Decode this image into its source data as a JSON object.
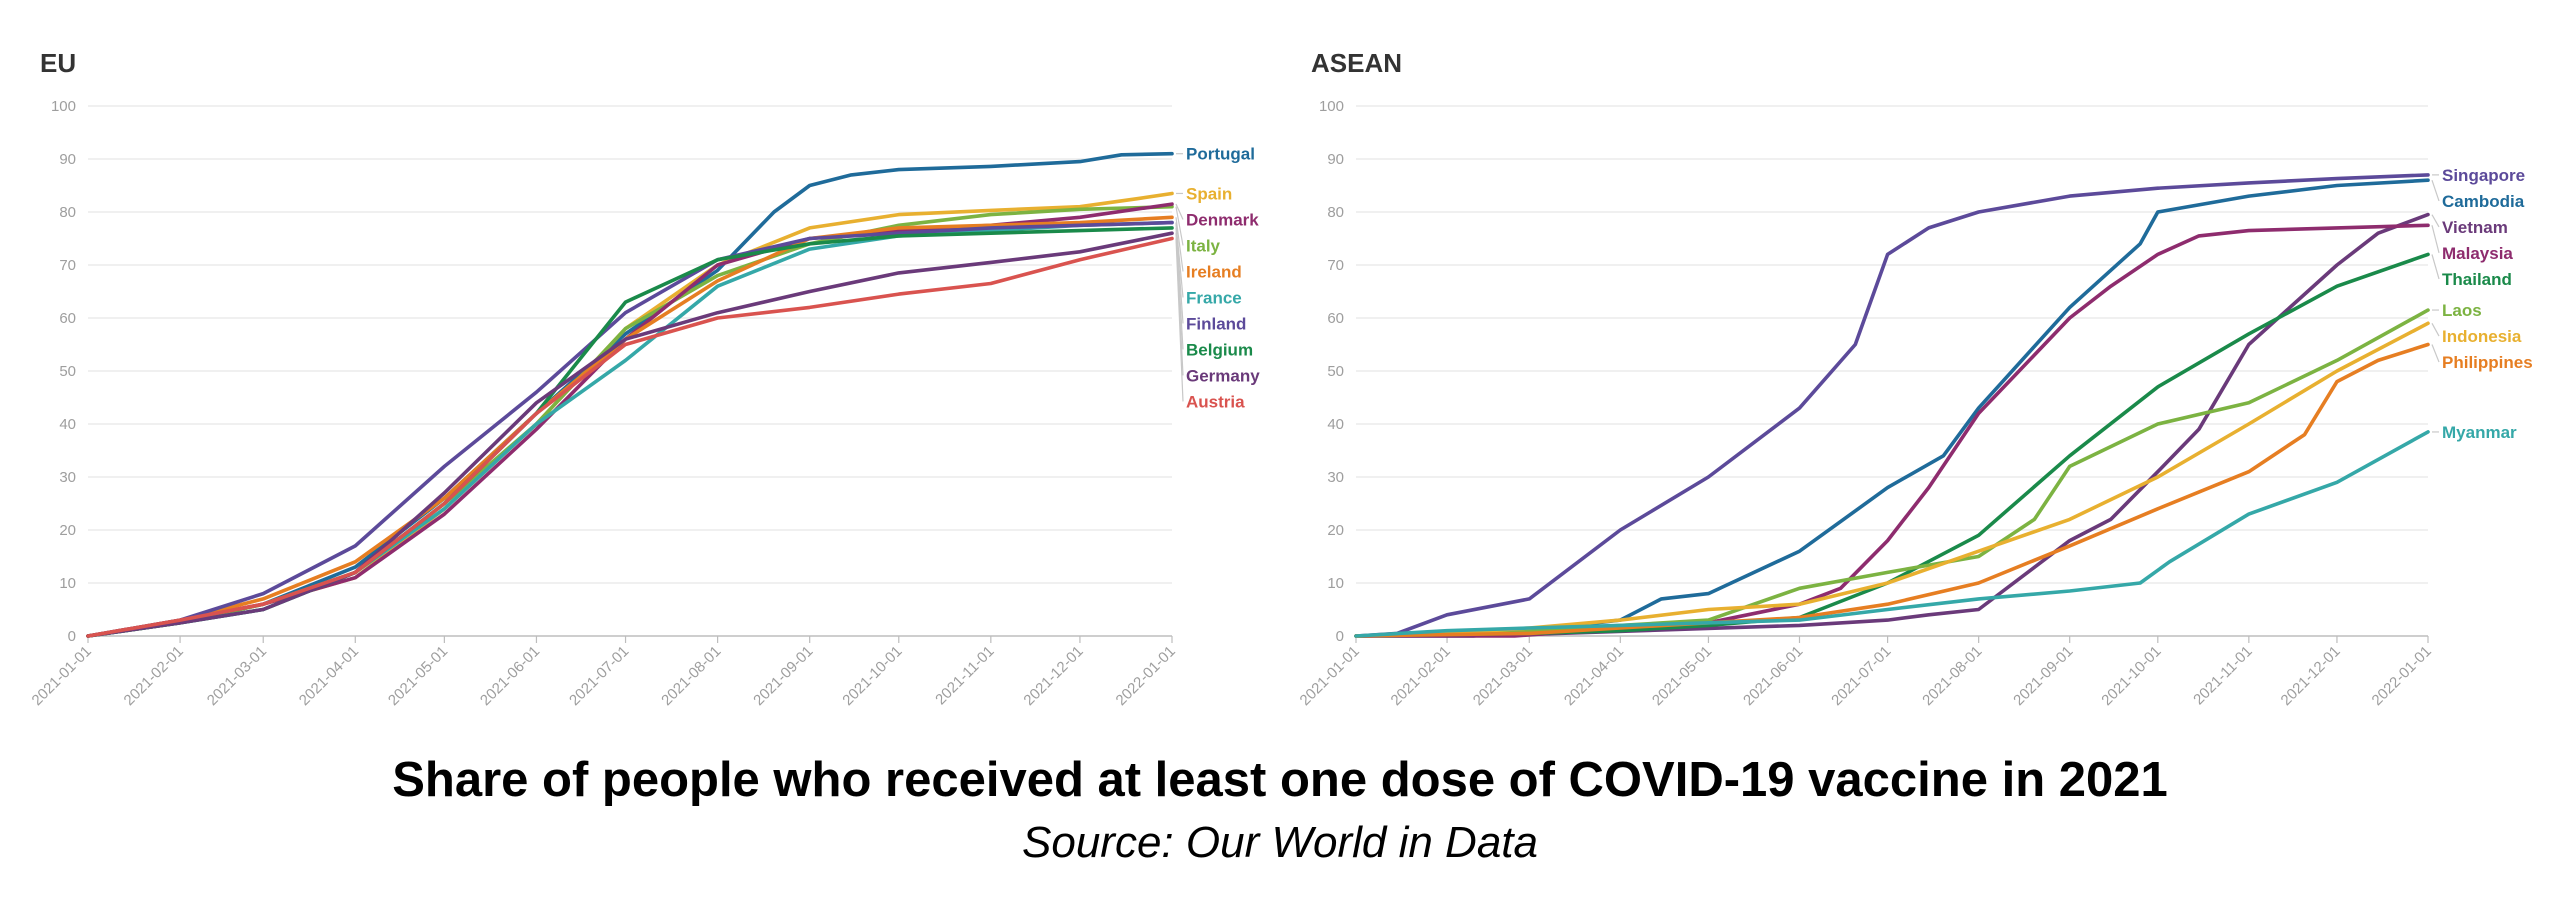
{
  "footer": {
    "title": "Share of people who received at least one dose of COVID-19 vaccine in 2021",
    "source": "Source: Our World in Data"
  },
  "chart_data": [
    {
      "type": "line",
      "title": "EU",
      "xlabel": "",
      "ylabel": "",
      "ylim": [
        0,
        100
      ],
      "yticks": [
        0,
        10,
        20,
        30,
        40,
        50,
        60,
        70,
        80,
        90,
        100
      ],
      "xlim": [
        "2021-01-01",
        "2022-01-01"
      ],
      "xticks": [
        "2021-01-01",
        "2021-02-01",
        "2021-03-01",
        "2021-04-01",
        "2021-05-01",
        "2021-06-01",
        "2021-07-01",
        "2021-08-01",
        "2021-09-01",
        "2021-10-01",
        "2021-11-01",
        "2021-12-01",
        "2022-01-01"
      ],
      "grid": "horizontal",
      "legend": "end-of-line labels",
      "series": [
        {
          "name": "Portugal",
          "color": "#1f6b9a",
          "x": [
            "2021-01-01",
            "2021-02-01",
            "2021-03-01",
            "2021-04-01",
            "2021-05-01",
            "2021-06-01",
            "2021-07-01",
            "2021-08-01",
            "2021-08-20",
            "2021-09-01",
            "2021-09-15",
            "2021-10-01",
            "2021-11-01",
            "2021-12-01",
            "2021-12-15",
            "2022-01-01"
          ],
          "y": [
            0,
            2.5,
            6,
            13,
            26,
            42,
            57,
            69,
            80,
            85,
            87,
            88,
            88.6,
            89.5,
            90.8,
            91
          ]
        },
        {
          "name": "Spain",
          "color": "#e8b030",
          "x": [
            "2021-01-01",
            "2021-02-01",
            "2021-03-01",
            "2021-04-01",
            "2021-05-01",
            "2021-06-01",
            "2021-07-01",
            "2021-08-01",
            "2021-09-01",
            "2021-10-01",
            "2021-11-01",
            "2021-12-01",
            "2021-12-20",
            "2022-01-01"
          ],
          "y": [
            0,
            2.5,
            6,
            11,
            24,
            40,
            58,
            70,
            77,
            79.5,
            80.3,
            81,
            82.5,
            83.5
          ]
        },
        {
          "name": "Italy",
          "color": "#7cb342",
          "x": [
            "2021-01-01",
            "2021-02-01",
            "2021-03-01",
            "2021-04-01",
            "2021-05-01",
            "2021-06-01",
            "2021-07-01",
            "2021-08-01",
            "2021-09-01",
            "2021-10-01",
            "2021-11-01",
            "2021-12-01",
            "2022-01-01"
          ],
          "y": [
            0,
            2.5,
            6,
            12,
            25,
            40,
            58,
            68,
            74,
            77.5,
            79.5,
            80.5,
            81
          ]
        },
        {
          "name": "Denmark",
          "color": "#8e2c6e",
          "x": [
            "2021-01-01",
            "2021-02-01",
            "2021-03-01",
            "2021-04-01",
            "2021-05-01",
            "2021-06-01",
            "2021-07-01",
            "2021-08-01",
            "2021-09-01",
            "2021-10-01",
            "2021-11-01",
            "2021-12-01",
            "2022-01-01"
          ],
          "y": [
            0,
            3,
            6,
            11,
            23,
            39,
            56,
            70,
            75,
            76.5,
            77.5,
            79,
            81.5
          ]
        },
        {
          "name": "France",
          "color": "#35a8a8",
          "x": [
            "2021-01-01",
            "2021-02-01",
            "2021-03-01",
            "2021-04-01",
            "2021-05-01",
            "2021-06-01",
            "2021-07-01",
            "2021-08-01",
            "2021-09-01",
            "2021-10-01",
            "2021-11-01",
            "2021-12-01",
            "2022-01-01"
          ],
          "y": [
            0,
            2.5,
            5,
            12,
            24,
            40,
            52,
            66,
            73,
            75.5,
            76.5,
            77.5,
            78
          ]
        },
        {
          "name": "Ireland",
          "color": "#e67e22",
          "x": [
            "2021-01-01",
            "2021-02-01",
            "2021-03-01",
            "2021-04-01",
            "2021-05-01",
            "2021-06-01",
            "2021-07-01",
            "2021-08-01",
            "2021-09-01",
            "2021-10-01",
            "2021-11-01",
            "2021-12-01",
            "2022-01-01"
          ],
          "y": [
            0,
            3,
            7,
            14,
            26,
            42,
            56,
            67,
            75,
            77,
            77.5,
            78,
            79
          ]
        },
        {
          "name": "Finland",
          "color": "#5c4a9a",
          "x": [
            "2021-01-01",
            "2021-02-01",
            "2021-03-01",
            "2021-04-01",
            "2021-05-01",
            "2021-06-01",
            "2021-07-01",
            "2021-08-01",
            "2021-09-01",
            "2021-10-01",
            "2021-11-01",
            "2021-12-01",
            "2022-01-01"
          ],
          "y": [
            0,
            3,
            8,
            17,
            32,
            46,
            61,
            71,
            75,
            76,
            77,
            77.5,
            78
          ]
        },
        {
          "name": "Belgium",
          "color": "#1a8a4a",
          "x": [
            "2021-01-01",
            "2021-02-01",
            "2021-03-01",
            "2021-04-01",
            "2021-05-01",
            "2021-06-01",
            "2021-07-01",
            "2021-08-01",
            "2021-09-01",
            "2021-10-01",
            "2021-11-01",
            "2021-12-01",
            "2022-01-01"
          ],
          "y": [
            0,
            2.5,
            5,
            12,
            25,
            42,
            63,
            71,
            74,
            75.5,
            76,
            76.5,
            77
          ]
        },
        {
          "name": "Germany",
          "color": "#6a3a7a",
          "x": [
            "2021-01-01",
            "2021-02-01",
            "2021-03-01",
            "2021-04-01",
            "2021-05-01",
            "2021-06-01",
            "2021-07-01",
            "2021-08-01",
            "2021-09-01",
            "2021-10-01",
            "2021-11-01",
            "2021-12-01",
            "2022-01-01"
          ],
          "y": [
            0,
            2.5,
            5,
            12,
            27,
            44,
            56,
            61,
            65,
            68.5,
            70.5,
            72.5,
            76
          ]
        },
        {
          "name": "Austria",
          "color": "#d9534f",
          "x": [
            "2021-01-01",
            "2021-02-01",
            "2021-03-01",
            "2021-04-01",
            "2021-05-01",
            "2021-06-01",
            "2021-07-01",
            "2021-08-01",
            "2021-09-01",
            "2021-10-01",
            "2021-11-01",
            "2021-12-01",
            "2022-01-01"
          ],
          "y": [
            0,
            3,
            6,
            12,
            25,
            42,
            55,
            60,
            62,
            64.5,
            66.5,
            71,
            75
          ]
        }
      ]
    },
    {
      "type": "line",
      "title": "ASEAN",
      "xlabel": "",
      "ylabel": "",
      "ylim": [
        0,
        100
      ],
      "yticks": [
        0,
        10,
        20,
        30,
        40,
        50,
        60,
        70,
        80,
        90,
        100
      ],
      "xlim": [
        "2021-01-01",
        "2022-01-01"
      ],
      "xticks": [
        "2021-01-01",
        "2021-02-01",
        "2021-03-01",
        "2021-04-01",
        "2021-05-01",
        "2021-06-01",
        "2021-07-01",
        "2021-08-01",
        "2021-09-01",
        "2021-10-01",
        "2021-11-01",
        "2021-12-01",
        "2022-01-01"
      ],
      "grid": "horizontal",
      "legend": "end-of-line labels",
      "series": [
        {
          "name": "Singapore",
          "color": "#5c4a9a",
          "x": [
            "2021-01-01",
            "2021-01-15",
            "2021-02-01",
            "2021-03-01",
            "2021-04-01",
            "2021-05-01",
            "2021-06-01",
            "2021-06-20",
            "2021-07-01",
            "2021-07-15",
            "2021-08-01",
            "2021-09-01",
            "2021-10-01",
            "2021-11-01",
            "2021-12-01",
            "2022-01-01"
          ],
          "y": [
            0,
            0.5,
            4,
            7,
            20,
            30,
            43,
            55,
            72,
            77,
            80,
            83,
            84.5,
            85.5,
            86.3,
            87
          ]
        },
        {
          "name": "Cambodia",
          "color": "#1f6b9a",
          "x": [
            "2021-01-01",
            "2021-02-10",
            "2021-03-01",
            "2021-04-01",
            "2021-04-15",
            "2021-05-01",
            "2021-06-01",
            "2021-07-01",
            "2021-07-20",
            "2021-08-01",
            "2021-09-01",
            "2021-09-15",
            "2021-09-25",
            "2021-10-01",
            "2021-11-01",
            "2021-12-01",
            "2022-01-01"
          ],
          "y": [
            0,
            0,
            1,
            3,
            7,
            8,
            16,
            28,
            34,
            43,
            62,
            69,
            74,
            80,
            83,
            85,
            86
          ]
        },
        {
          "name": "Vietnam",
          "color": "#6a3a7a",
          "x": [
            "2021-01-01",
            "2021-03-01",
            "2021-06-01",
            "2021-07-01",
            "2021-07-15",
            "2021-08-01",
            "2021-09-01",
            "2021-09-15",
            "2021-10-01",
            "2021-10-15",
            "2021-11-01",
            "2021-11-15",
            "2021-12-01",
            "2021-12-15",
            "2022-01-01"
          ],
          "y": [
            0,
            0.3,
            2,
            3,
            4,
            5,
            18,
            22,
            31,
            39,
            55,
            62,
            70,
            76,
            79.5
          ]
        },
        {
          "name": "Malaysia",
          "color": "#8e2c6e",
          "x": [
            "2021-01-01",
            "2021-02-24",
            "2021-04-01",
            "2021-05-01",
            "2021-06-01",
            "2021-06-15",
            "2021-07-01",
            "2021-07-15",
            "2021-08-01",
            "2021-09-01",
            "2021-09-15",
            "2021-10-01",
            "2021-10-15",
            "2021-11-01",
            "2021-12-01",
            "2022-01-01"
          ],
          "y": [
            0,
            0,
            1.5,
            2.5,
            6,
            9,
            18,
            28,
            42,
            60,
            66,
            72,
            75.5,
            76.5,
            77,
            77.5
          ]
        },
        {
          "name": "Thailand",
          "color": "#1a8a4a",
          "x": [
            "2021-01-01",
            "2021-03-01",
            "2021-04-01",
            "2021-05-01",
            "2021-06-01",
            "2021-07-01",
            "2021-08-01",
            "2021-09-01",
            "2021-10-01",
            "2021-11-01",
            "2021-12-01",
            "2022-01-01"
          ],
          "y": [
            0,
            0.5,
            1,
            2,
            3.5,
            10,
            19,
            34,
            47,
            57,
            66,
            72
          ]
        },
        {
          "name": "Laos",
          "color": "#7cb342",
          "x": [
            "2021-01-01",
            "2021-03-01",
            "2021-04-01",
            "2021-05-01",
            "2021-06-01",
            "2021-07-01",
            "2021-08-01",
            "2021-08-20",
            "2021-09-01",
            "2021-10-01",
            "2021-11-01",
            "2021-12-01",
            "2022-01-01"
          ],
          "y": [
            0,
            1,
            2,
            3,
            9,
            12,
            15,
            22,
            32,
            40,
            44,
            52,
            61.5
          ]
        },
        {
          "name": "Indonesia",
          "color": "#e8b030",
          "x": [
            "2021-01-01",
            "2021-02-01",
            "2021-03-01",
            "2021-04-01",
            "2021-05-01",
            "2021-06-01",
            "2021-07-01",
            "2021-08-01",
            "2021-09-01",
            "2021-10-01",
            "2021-11-01",
            "2021-12-01",
            "2022-01-01"
          ],
          "y": [
            0,
            0.5,
            1.5,
            3,
            5,
            6,
            10,
            16,
            22,
            30,
            40,
            50,
            59
          ]
        },
        {
          "name": "Philippines",
          "color": "#e67e22",
          "x": [
            "2021-01-01",
            "2021-03-01",
            "2021-04-01",
            "2021-05-01",
            "2021-06-01",
            "2021-07-01",
            "2021-08-01",
            "2021-09-01",
            "2021-10-01",
            "2021-11-01",
            "2021-11-20",
            "2021-12-01",
            "2021-12-15",
            "2022-01-01"
          ],
          "y": [
            0,
            0.5,
            1.5,
            2.5,
            3.5,
            6,
            10,
            17,
            24,
            31,
            38,
            48,
            52,
            55
          ]
        },
        {
          "name": "Myanmar",
          "color": "#35a8a8",
          "x": [
            "2021-01-01",
            "2021-02-01",
            "2021-03-01",
            "2021-04-01",
            "2021-05-01",
            "2021-06-01",
            "2021-07-01",
            "2021-08-01",
            "2021-09-01",
            "2021-09-25",
            "2021-10-05",
            "2021-11-01",
            "2021-12-01",
            "2022-01-01"
          ],
          "y": [
            0,
            1,
            1.5,
            2,
            2.5,
            3,
            5,
            7,
            8.5,
            10,
            14,
            23,
            29,
            38.5
          ]
        }
      ]
    }
  ]
}
